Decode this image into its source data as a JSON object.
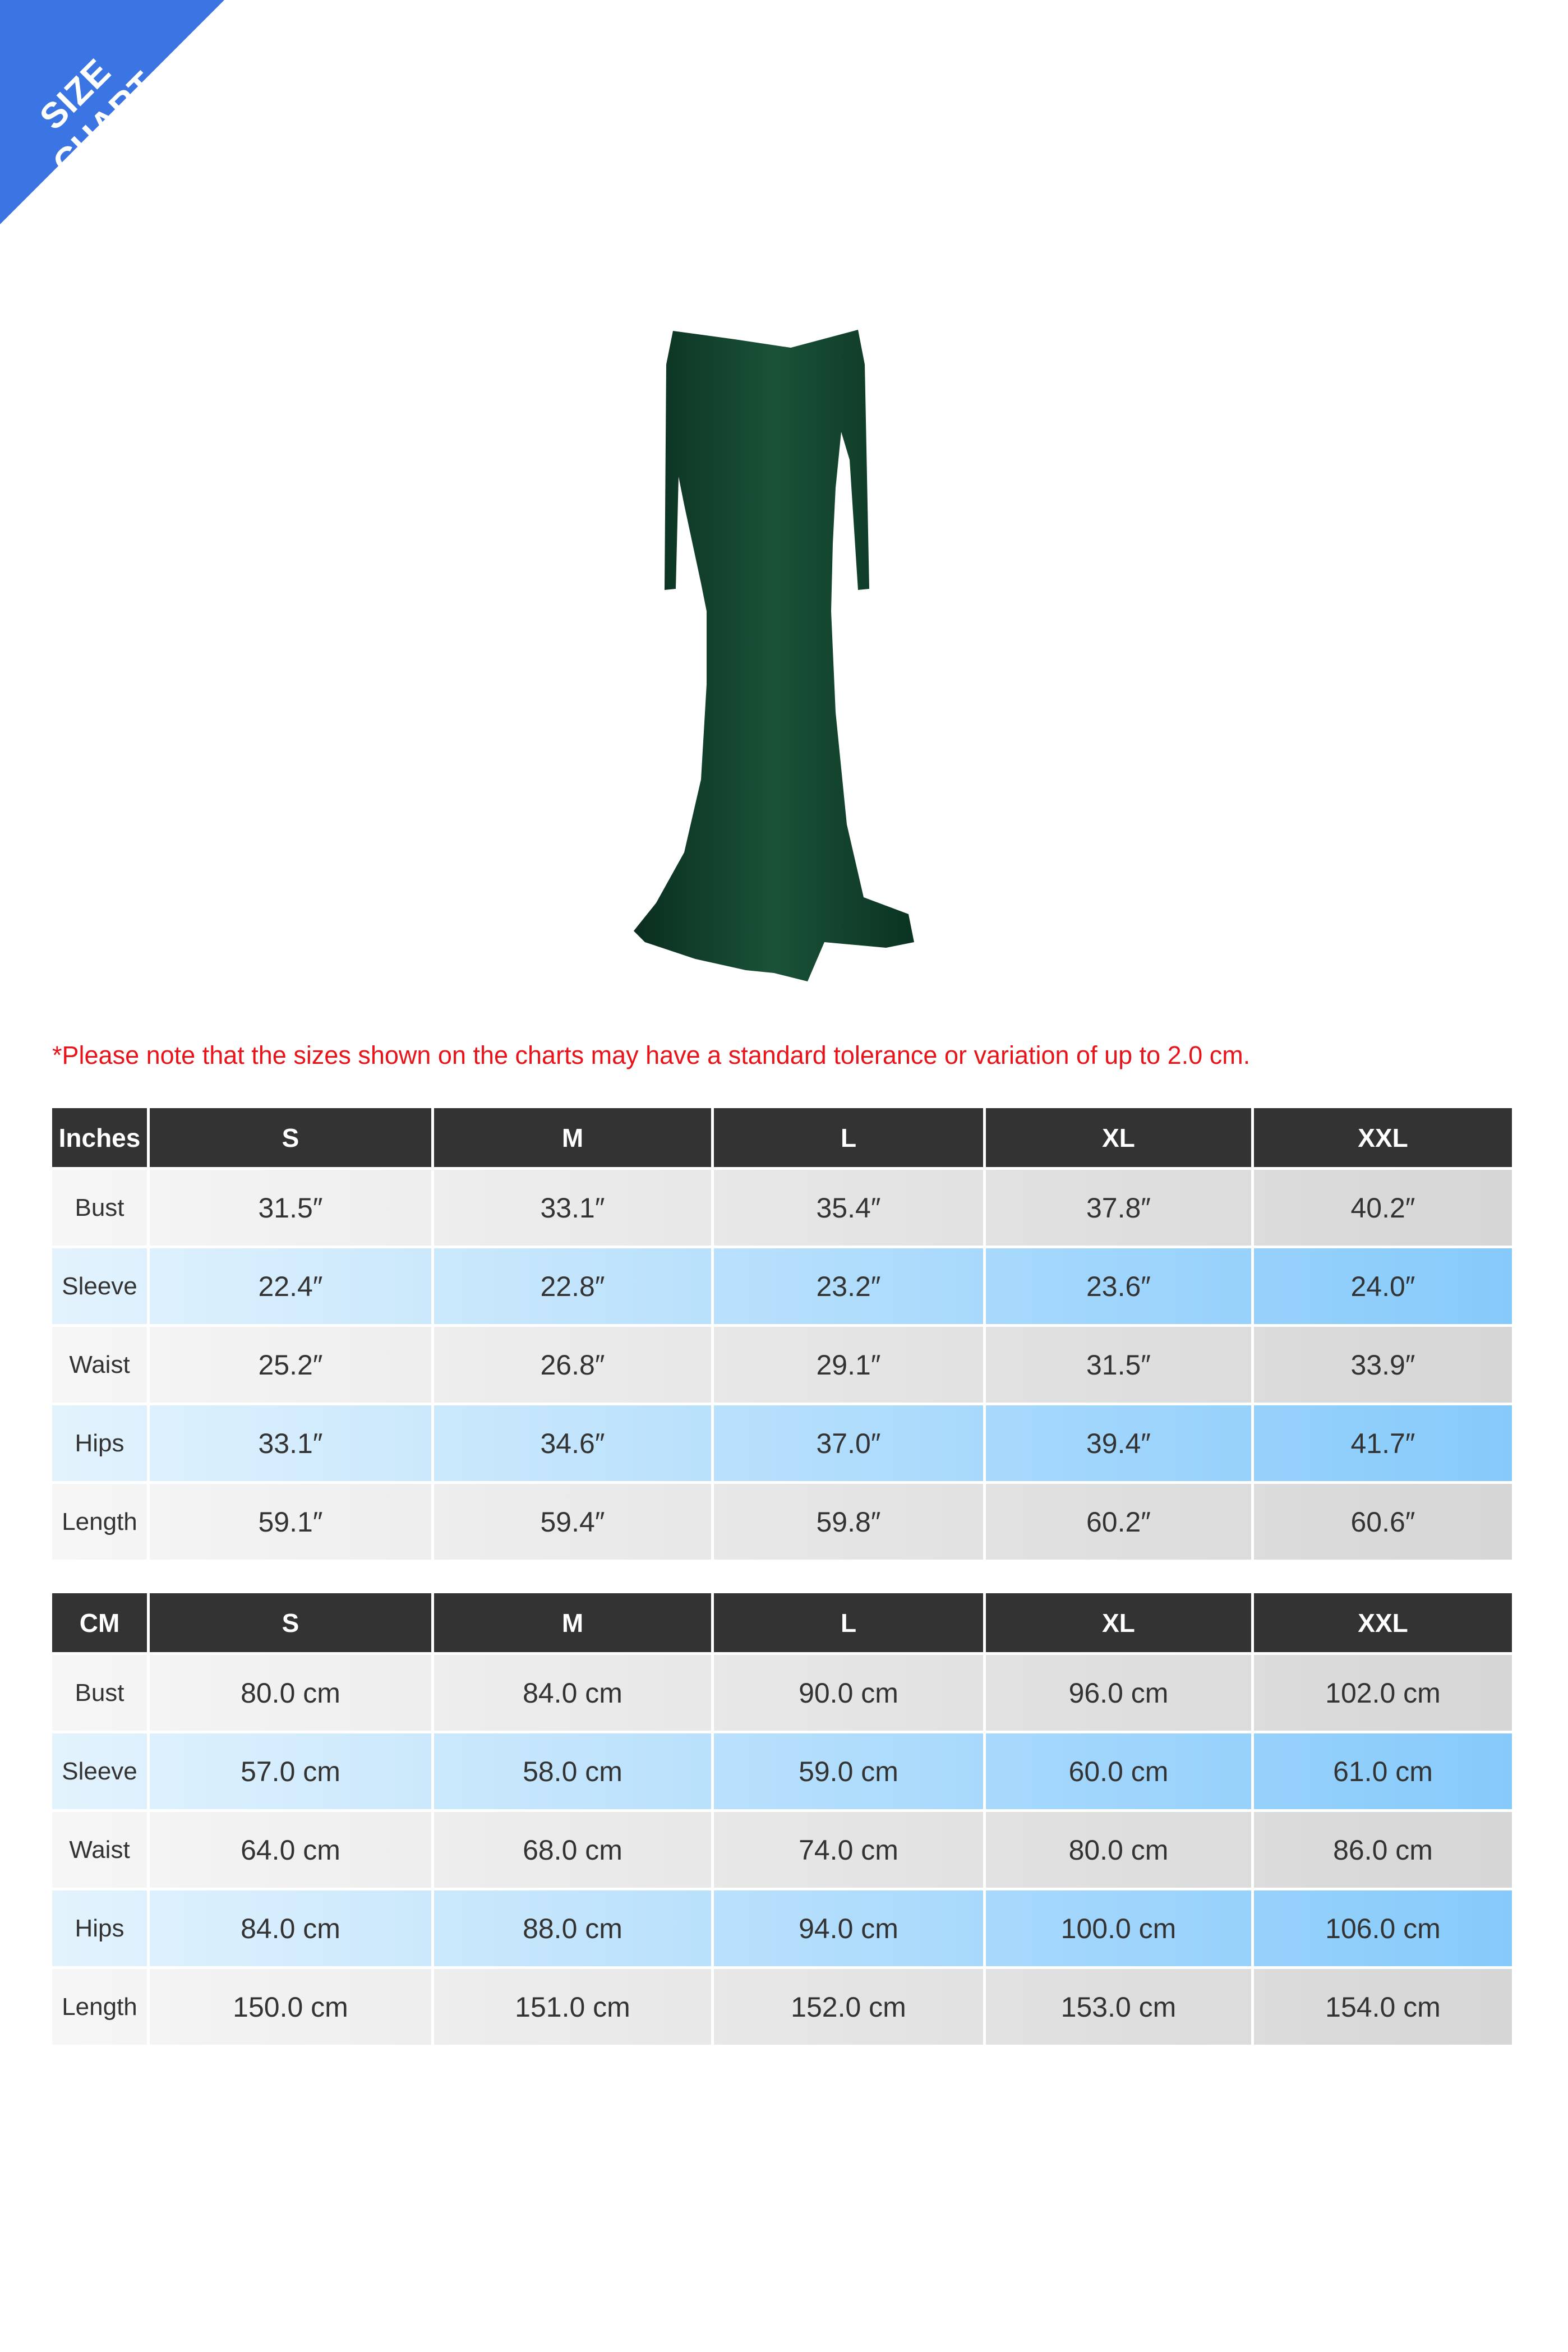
{
  "banner": {
    "label": "SIZE CHART",
    "color": "#3b75e4"
  },
  "product_image": {
    "description_icon": "dress-image",
    "color": "#0f3d2a"
  },
  "note": "*Please note that the sizes shown on the charts may have a standard tolerance or variation of up to 2.0 cm.",
  "tables": [
    {
      "unit": "Inches",
      "headers": [
        "S",
        "M",
        "L",
        "XL",
        "XXL"
      ],
      "rows": [
        {
          "label": "Bust",
          "values": [
            "31.5″",
            "33.1″",
            "35.4″",
            "37.8″",
            "40.2″"
          ]
        },
        {
          "label": "Sleeve",
          "values": [
            "22.4″",
            "22.8″",
            "23.2″",
            "23.6″",
            "24.0″"
          ]
        },
        {
          "label": "Waist",
          "values": [
            "25.2″",
            "26.8″",
            "29.1″",
            "31.5″",
            "33.9″"
          ]
        },
        {
          "label": "Hips",
          "values": [
            "33.1″",
            "34.6″",
            "37.0″",
            "39.4″",
            "41.7″"
          ]
        },
        {
          "label": "Length",
          "values": [
            "59.1″",
            "59.4″",
            "59.8″",
            "60.2″",
            "60.6″"
          ]
        }
      ]
    },
    {
      "unit": "CM",
      "headers": [
        "S",
        "M",
        "L",
        "XL",
        "XXL"
      ],
      "rows": [
        {
          "label": "Bust",
          "values": [
            "80.0 cm",
            "84.0 cm",
            "90.0 cm",
            "96.0 cm",
            "102.0 cm"
          ]
        },
        {
          "label": "Sleeve",
          "values": [
            "57.0 cm",
            "58.0 cm",
            "59.0 cm",
            "60.0 cm",
            "61.0 cm"
          ]
        },
        {
          "label": "Waist",
          "values": [
            "64.0 cm",
            "68.0 cm",
            "74.0 cm",
            "80.0 cm",
            "86.0 cm"
          ]
        },
        {
          "label": "Hips",
          "values": [
            "84.0 cm",
            "88.0 cm",
            "94.0 cm",
            "100.0 cm",
            "106.0 cm"
          ]
        },
        {
          "label": "Length",
          "values": [
            "150.0 cm",
            "151.0 cm",
            "152.0 cm",
            "153.0 cm",
            "154.0 cm"
          ]
        }
      ]
    }
  ]
}
